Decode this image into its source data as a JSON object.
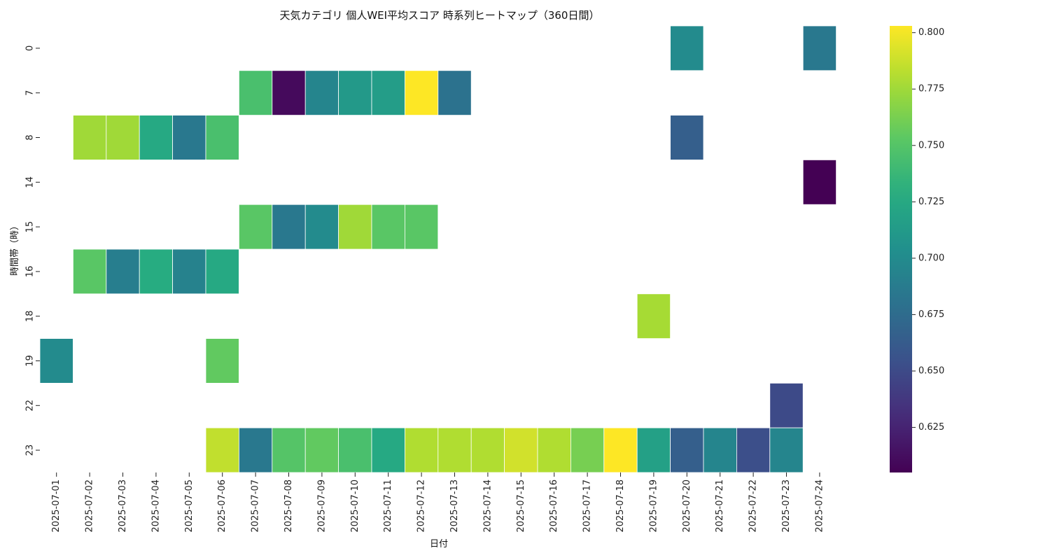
{
  "chart_data": {
    "type": "heatmap",
    "title": "天気カテゴリ 個人WEI平均スコア 時系列ヒートマップ（360日間）",
    "xlabel": "日付",
    "ylabel": "時間帯（時）",
    "x": [
      "2025-07-01",
      "2025-07-02",
      "2025-07-03",
      "2025-07-04",
      "2025-07-05",
      "2025-07-06",
      "2025-07-07",
      "2025-07-08",
      "2025-07-09",
      "2025-07-10",
      "2025-07-11",
      "2025-07-12",
      "2025-07-13",
      "2025-07-14",
      "2025-07-15",
      "2025-07-16",
      "2025-07-17",
      "2025-07-18",
      "2025-07-19",
      "2025-07-20",
      "2025-07-21",
      "2025-07-22",
      "2025-07-23",
      "2025-07-24"
    ],
    "y": [
      "0",
      "7",
      "8",
      "14",
      "15",
      "16",
      "18",
      "19",
      "22",
      "23"
    ],
    "values": [
      [
        null,
        null,
        null,
        null,
        null,
        null,
        null,
        null,
        null,
        null,
        null,
        null,
        null,
        null,
        null,
        null,
        null,
        null,
        null,
        0.7,
        null,
        null,
        null,
        0.685
      ],
      [
        null,
        null,
        null,
        null,
        null,
        null,
        0.745,
        0.61,
        0.695,
        0.712,
        0.715,
        0.803,
        0.68,
        null,
        null,
        null,
        null,
        null,
        null,
        null,
        null,
        null,
        null,
        null
      ],
      [
        null,
        0.775,
        0.775,
        0.725,
        0.685,
        0.745,
        null,
        null,
        null,
        null,
        null,
        null,
        null,
        null,
        null,
        null,
        null,
        null,
        null,
        0.665,
        null,
        null,
        null,
        null
      ],
      [
        null,
        null,
        null,
        null,
        null,
        null,
        null,
        null,
        null,
        null,
        null,
        null,
        null,
        null,
        null,
        null,
        null,
        null,
        null,
        null,
        null,
        null,
        null,
        0.605
      ],
      [
        null,
        null,
        null,
        null,
        null,
        null,
        0.752,
        0.685,
        0.7,
        0.775,
        0.752,
        0.752,
        null,
        null,
        null,
        null,
        null,
        null,
        null,
        null,
        null,
        null,
        null,
        null
      ],
      [
        null,
        0.752,
        0.69,
        0.728,
        0.693,
        0.725,
        null,
        null,
        null,
        null,
        null,
        null,
        null,
        null,
        null,
        null,
        null,
        null,
        null,
        null,
        null,
        null,
        null,
        null
      ],
      [
        null,
        null,
        null,
        null,
        null,
        null,
        null,
        null,
        null,
        null,
        null,
        null,
        null,
        null,
        null,
        null,
        null,
        null,
        0.777,
        null,
        null,
        null,
        null,
        null
      ],
      [
        0.7,
        null,
        null,
        null,
        null,
        0.755,
        null,
        null,
        null,
        null,
        null,
        null,
        null,
        null,
        null,
        null,
        null,
        null,
        null,
        null,
        null,
        null,
        null,
        null
      ],
      [
        null,
        null,
        null,
        null,
        null,
        null,
        null,
        null,
        null,
        null,
        null,
        null,
        null,
        null,
        null,
        null,
        null,
        null,
        null,
        null,
        null,
        null,
        0.65,
        null
      ],
      [
        null,
        null,
        null,
        null,
        null,
        0.785,
        0.685,
        0.75,
        0.755,
        0.745,
        0.725,
        0.78,
        0.78,
        0.78,
        0.79,
        0.78,
        0.762,
        0.803,
        0.718,
        0.665,
        0.695,
        0.653,
        0.695,
        null
      ]
    ],
    "colormap": "viridis",
    "vmin": 0.605,
    "vmax": 0.803,
    "colorbar_ticks": [
      "0.625",
      "0.650",
      "0.675",
      "0.700",
      "0.725",
      "0.750",
      "0.775",
      "0.800"
    ]
  }
}
